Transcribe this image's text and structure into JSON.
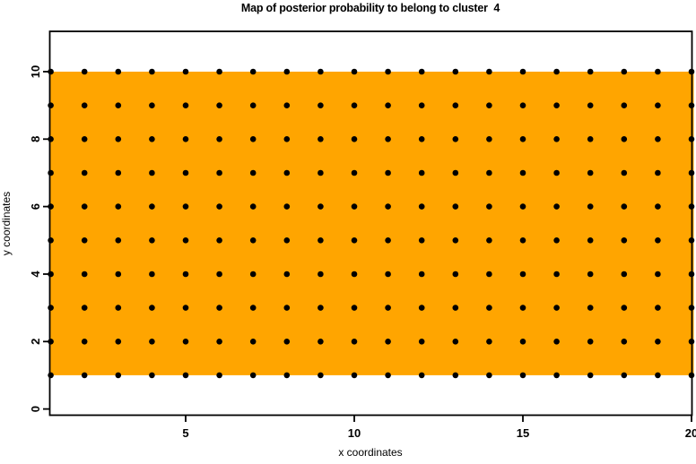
{
  "chart_data": {
    "type": "heatmap",
    "title": "Map of posterior probability to belong to cluster  4",
    "xlabel": "x coordinates",
    "ylabel": "y coordinates",
    "x_ticks": [
      5,
      10,
      15,
      20
    ],
    "y_ticks": [
      0,
      2,
      4,
      6,
      8,
      10
    ],
    "xlim": [
      1,
      20
    ],
    "ylim": [
      0,
      10
    ],
    "grid": false,
    "legend": "none",
    "region": {
      "x_range": [
        1,
        20
      ],
      "y_range": [
        1,
        10
      ],
      "fill_color": "#FFA500"
    },
    "points": {
      "x_values": [
        1,
        2,
        3,
        4,
        5,
        6,
        7,
        8,
        9,
        10,
        11,
        12,
        13,
        14,
        15,
        16,
        17,
        18,
        19,
        20
      ],
      "y_values": [
        1,
        2,
        3,
        4,
        5,
        6,
        7,
        8,
        9,
        10
      ],
      "marker": "filled-circle",
      "color": "#000000"
    },
    "colors": {
      "background": "#FFFFFF",
      "axis": "#000000",
      "region_fill": "#FFA500",
      "point": "#000000"
    }
  }
}
